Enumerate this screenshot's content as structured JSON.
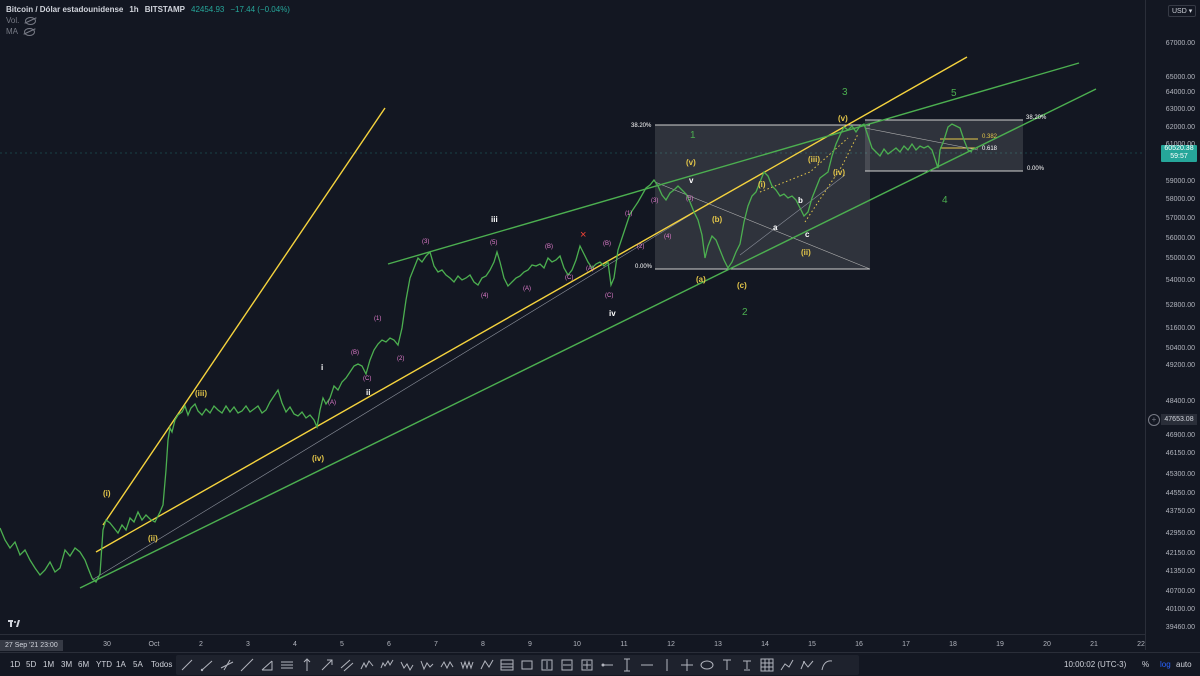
{
  "legend": {
    "symbol": "Bitcoin / Dólar estadounidense",
    "interval": "1h",
    "exchange": "BITSTAMP",
    "last_price": "42454.93",
    "change": "−17.44 (−0.04%)",
    "vol_label": "Vol.",
    "ma_label": "MA"
  },
  "currency_button": "USD",
  "price_axis": {
    "ticks": [
      "67000.00",
      "65000.00",
      "64000.00",
      "63000.00",
      "62000.00",
      "61000.00",
      "59000.00",
      "58000.00",
      "57000.00",
      "56000.00",
      "55000.00",
      "54000.00",
      "52800.00",
      "51600.00",
      "50400.00",
      "49200.00",
      "48400.00",
      "47653.08",
      "46900.00",
      "46150.00",
      "45300.00",
      "44550.00",
      "43750.00",
      "42950.00",
      "42150.00",
      "41350.00",
      "40700.00",
      "40100.00",
      "39460.00"
    ],
    "current_price": "60520.38",
    "countdown": "59:57",
    "crosshair_price": "47653.08"
  },
  "time_axis": {
    "labels": [
      "30",
      "Oct",
      "2",
      "3",
      "4",
      "5",
      "6",
      "7",
      "8",
      "9",
      "10",
      "11",
      "12",
      "13",
      "14",
      "15",
      "16",
      "17",
      "18",
      "19",
      "20",
      "21",
      "22"
    ],
    "crosshair_date": "27 Sep '21  23:00"
  },
  "fib": {
    "box1_top": "38.20%",
    "box1_bottom": "0.00%",
    "box2_top": "38.20%",
    "box2_level1": "0.382",
    "box2_level2": "0.618",
    "box2_bottom": "0.00%"
  },
  "waves": {
    "major": [
      "1",
      "2",
      "3",
      "4",
      "5"
    ],
    "yellow": [
      "(i)",
      "(ii)",
      "(iii)",
      "(iv)",
      "(v)",
      "(a)",
      "(b)",
      "(c)",
      "(i)",
      "(ii)",
      "(iii)",
      "(iv)",
      "(v)",
      "(v)"
    ],
    "white": [
      "i",
      "ii",
      "iii",
      "iv",
      "v",
      "a",
      "b",
      "c"
    ],
    "pink": [
      "(1)",
      "(2)",
      "(3)",
      "(4)",
      "(5)",
      "(A)",
      "(B)",
      "(C)",
      "(A)",
      "(B)",
      "(C)",
      "(1)",
      "(2)",
      "(3)",
      "(4)",
      "(5)",
      "(A)",
      "(B)",
      "(C)",
      "(4)",
      "(3)",
      "(2)",
      "(1)"
    ],
    "x_mark": "×"
  },
  "bottom_bar": {
    "ranges": [
      "1D",
      "5D",
      "1M",
      "3M",
      "6M",
      "YTD",
      "1A",
      "5A",
      "Todos"
    ],
    "clock": "10:00:02 (UTC-3)",
    "percent": "%",
    "log": "log",
    "auto": "auto"
  },
  "colors": {
    "background": "#131722",
    "price_line": "#4caf50",
    "trend_green": "#4caf50",
    "trend_yellow": "#f5d33e",
    "wave_yellow": "#e6c84a",
    "wave_pink": "#e57ed0",
    "wave_white": "#ffffff",
    "accent": "#2962ff",
    "badge_green": "#26a69a"
  }
}
